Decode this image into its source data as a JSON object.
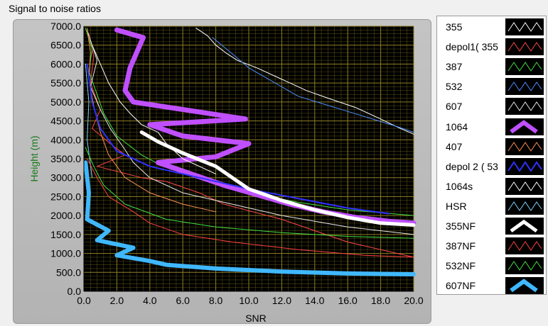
{
  "window": {
    "title": "Signal to noise ratios"
  },
  "chart_data": {
    "type": "line",
    "xlabel": "SNR",
    "ylabel": "Height (m)",
    "xlim": [
      0,
      20
    ],
    "ylim": [
      0,
      7000
    ],
    "x_ticks": [
      "0.0",
      "2.0",
      "4.0",
      "6.0",
      "8.0",
      "10.0",
      "12.0",
      "14.0",
      "16.0",
      "18.0",
      "20.0"
    ],
    "y_ticks": [
      "0.0",
      "500.0",
      "1000.0",
      "1500.0",
      "2000.0",
      "2500.0",
      "3000.0",
      "3500.0",
      "4000.0",
      "4500.0",
      "5000.0",
      "5500.0",
      "6000.0",
      "6500.0",
      "7000.0"
    ],
    "grid": true,
    "background": "#000000",
    "grid_color": "#8c7d20",
    "series": [
      {
        "name": "355",
        "color": "#ffffff",
        "width": 1,
        "x": [
          6.8,
          7.5,
          8.0,
          8.6,
          9.3,
          10.5,
          11.5,
          12.5,
          13.5,
          14.8,
          16.5,
          18.0,
          19.2,
          20.0
        ],
        "y": [
          6950,
          6750,
          6500,
          6300,
          6100,
          5900,
          5700,
          5500,
          5300,
          5100,
          4850,
          4550,
          4300,
          4150
        ]
      },
      {
        "name": "depol1( 355",
        "color": "#ff4848",
        "width": 1,
        "x": [
          0.3,
          0.6,
          0.4,
          1.0,
          0.5,
          1.6,
          2.5,
          0.8,
          3.5,
          5.0,
          7.0,
          8.5,
          12.0,
          16.0,
          20.0
        ],
        "y": [
          6800,
          6200,
          5500,
          4800,
          4300,
          3900,
          3600,
          3300,
          3000,
          2900,
          2600,
          2300,
          1900,
          1300,
          900
        ]
      },
      {
        "name": "387",
        "color": "#40e040",
        "width": 1,
        "x": [
          0.1,
          0.5,
          0.3,
          0.8,
          1.2,
          2.0,
          3.5,
          4.8,
          6.5,
          8.0,
          10.0,
          13.0,
          16.0,
          20.0
        ],
        "y": [
          6950,
          6400,
          5800,
          5200,
          4700,
          4100,
          3600,
          3300,
          3100,
          2850,
          2600,
          2350,
          2150,
          2000
        ]
      },
      {
        "name": "532",
        "color": "#4b8cff",
        "width": 1,
        "x": [
          7.8,
          8.5,
          9.2,
          10.0,
          11.0,
          12.0,
          13.0,
          14.5,
          16.0,
          17.5,
          19.0,
          20.0
        ],
        "y": [
          6700,
          6450,
          6200,
          5900,
          5650,
          5400,
          5150,
          4950,
          4750,
          4550,
          4350,
          4200
        ]
      },
      {
        "name": "607",
        "color": "#e8e8e8",
        "width": 1,
        "x": [
          0.2,
          0.8,
          0.4,
          1.0,
          1.6,
          2.4,
          3.0,
          4.0,
          6.0,
          9.0,
          12.0,
          16.0,
          20.0
        ],
        "y": [
          6900,
          6100,
          5400,
          4800,
          4300,
          3800,
          3400,
          3000,
          2600,
          2300,
          2000,
          1700,
          1500
        ]
      },
      {
        "name": "1064",
        "color": "#c050ff",
        "width": 7,
        "x": [
          2.0,
          3.6,
          3.2,
          2.8,
          2.5,
          3.0,
          9.8,
          4.0,
          6.0,
          10.0,
          8.0,
          4.5,
          6.5,
          8.5,
          10.5,
          12.5,
          14.5,
          16.5,
          18.5,
          20.0
        ],
        "y": [
          6900,
          6700,
          6300,
          5900,
          5300,
          5000,
          4550,
          4400,
          4100,
          3900,
          3550,
          3400,
          3100,
          2800,
          2550,
          2300,
          2100,
          1950,
          1850,
          1800
        ]
      },
      {
        "name": "407",
        "color": "#ff9050",
        "width": 1,
        "x": [
          0.2,
          0.4,
          0.3,
          0.6,
          1.0,
          1.5,
          2.5,
          4.0,
          6.0,
          8.0
        ],
        "y": [
          6950,
          6300,
          5600,
          4900,
          4200,
          3600,
          3000,
          2600,
          2300,
          2100
        ]
      },
      {
        "name": "depol 2 ( 53",
        "color": "#3030ff",
        "width": 2,
        "x": [
          0.2,
          0.5,
          1.0,
          2.0,
          4.0,
          7.0,
          10.0,
          13.0,
          16.0,
          18.5
        ],
        "y": [
          6000,
          5000,
          4300,
          3700,
          3300,
          3000,
          2700,
          2450,
          2200,
          2050
        ]
      },
      {
        "name": "1064s",
        "color": "#ffffff",
        "width": 1,
        "x": [
          0.5,
          1.5,
          2.2,
          2.8,
          3.5,
          4.5,
          5.0,
          6.0,
          8.0
        ],
        "y": [
          6500,
          5500,
          5000,
          4700,
          4400,
          4200,
          3900,
          3500,
          3100
        ]
      },
      {
        "name": "HSR",
        "color": "#80d0ff",
        "width": 1,
        "x": [
          0.1,
          0.3,
          0.2,
          0.5
        ],
        "y": [
          6000,
          5000,
          4000,
          3000
        ]
      },
      {
        "name": "355NF",
        "color": "#ffffff",
        "width": 5,
        "x": [
          3.5,
          4.5,
          6.0,
          8.0,
          9.0,
          10.0,
          12.0,
          14.0,
          16.0,
          18.0,
          20.0
        ],
        "y": [
          4200,
          3950,
          3650,
          3300,
          3000,
          2700,
          2400,
          2150,
          1950,
          1800,
          1750
        ]
      },
      {
        "name": "387NF",
        "color": "#ff4040",
        "width": 1,
        "x": [
          0.2,
          0.8,
          1.5,
          3.0,
          4.0,
          6.0,
          9.0,
          13.0,
          17.0,
          20.0
        ],
        "y": [
          3500,
          3000,
          2500,
          2100,
          1800,
          1500,
          1300,
          1100,
          950,
          900
        ]
      },
      {
        "name": "532NF",
        "color": "#40e040",
        "width": 1,
        "x": [
          0.1,
          0.6,
          1.2,
          2.5,
          5.0,
          8.0,
          12.0,
          16.0,
          20.0
        ],
        "y": [
          3800,
          3300,
          2800,
          2300,
          1900,
          1700,
          1550,
          1450,
          1400
        ]
      },
      {
        "name": "607NF",
        "color": "#40b8ff",
        "width": 6,
        "x": [
          0.1,
          0.3,
          0.2,
          1.5,
          0.8,
          3.0,
          2.0,
          4.0,
          5.0,
          8.0,
          12.0,
          16.0,
          20.0
        ],
        "y": [
          3400,
          2600,
          1900,
          1600,
          1350,
          1150,
          950,
          800,
          700,
          600,
          520,
          470,
          450
        ]
      }
    ]
  }
}
